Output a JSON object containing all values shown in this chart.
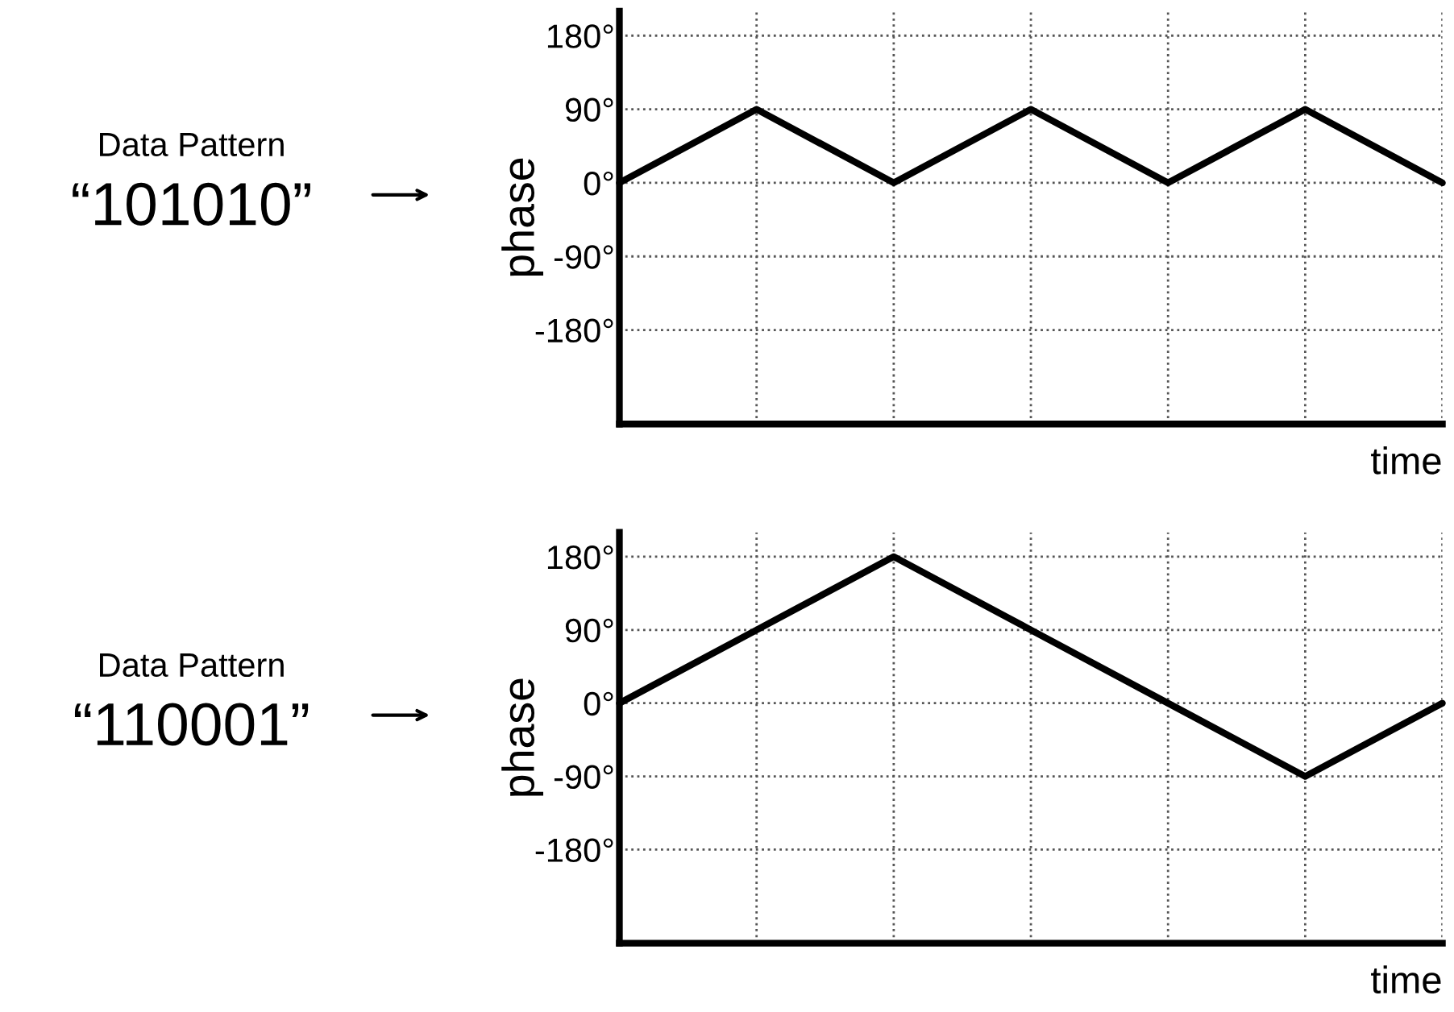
{
  "chart_data": [
    {
      "type": "line",
      "categories": [
        null,
        null,
        null,
        null,
        null,
        null,
        null
      ],
      "xlabel": "time",
      "ylabel": "phase",
      "tick_labels": "y",
      "grid": true,
      "line_style": "solid",
      "ylim": [
        -295,
        210
      ],
      "yticks": [
        {
          "value": 180,
          "label": "180°"
        },
        {
          "value": 90,
          "label": "90°"
        },
        {
          "value": 0,
          "label": "0°"
        },
        {
          "value": -90,
          "label": "-90°"
        },
        {
          "value": -180,
          "label": "-180°"
        }
      ],
      "series": [
        {
          "color": "#000000",
          "values": [
            0,
            90,
            0,
            90,
            0,
            90,
            0
          ]
        }
      ],
      "annotations": [
        "Data Pattern",
        "“101010”"
      ]
    },
    {
      "type": "line",
      "categories": [
        null,
        null,
        null,
        null,
        null,
        null,
        null
      ],
      "xlabel": "time",
      "ylabel": "phase",
      "tick_labels": "y",
      "grid": true,
      "line_style": "solid",
      "ylim": [
        -295,
        210
      ],
      "yticks": [
        {
          "value": 180,
          "label": "180°"
        },
        {
          "value": 90,
          "label": "90°"
        },
        {
          "value": 0,
          "label": "0°"
        },
        {
          "value": -90,
          "label": "-90°"
        },
        {
          "value": -180,
          "label": "-180°"
        }
      ],
      "series": [
        {
          "color": "#000000",
          "values": [
            0,
            90,
            180,
            90,
            0,
            -90,
            0
          ]
        }
      ],
      "annotations": [
        "Data Pattern",
        "“110001”"
      ]
    }
  ]
}
